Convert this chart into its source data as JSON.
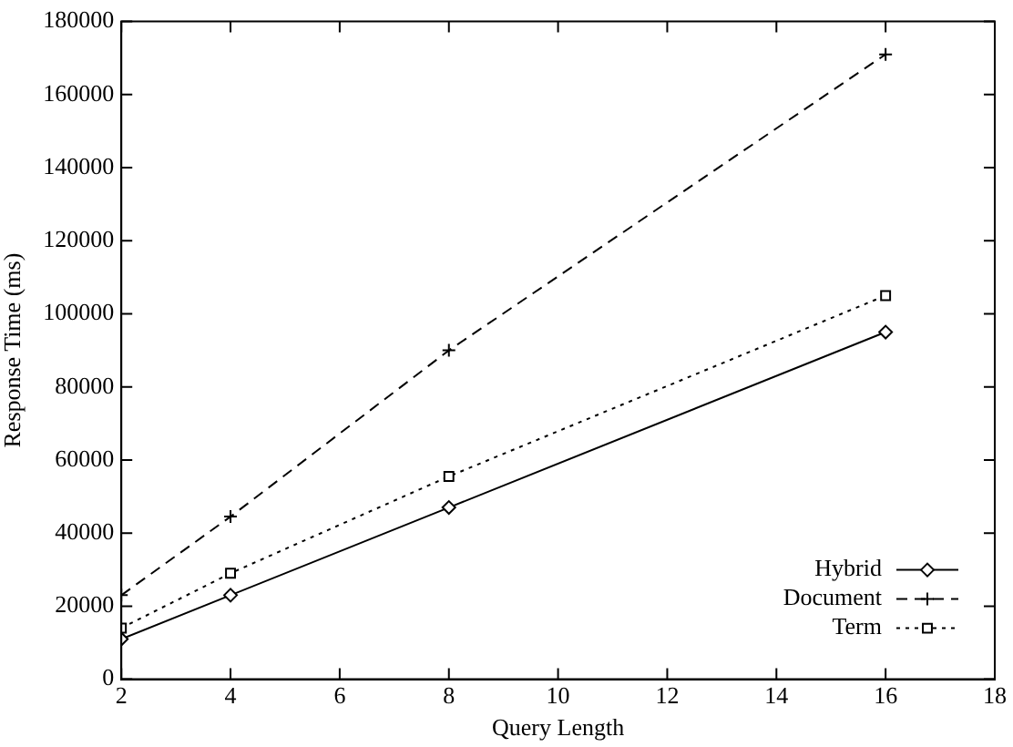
{
  "chart_data": {
    "type": "line",
    "xlabel": "Query Length",
    "ylabel": "Response Time (ms)",
    "x": [
      2,
      4,
      8,
      16
    ],
    "series": [
      {
        "name": "Hybrid",
        "color": "#000000",
        "values": [
          11000,
          23000,
          47000,
          95000
        ],
        "marker": "diamond",
        "line_style": "solid"
      },
      {
        "name": "Document",
        "color": "#000000",
        "values": [
          23000,
          44500,
          90000,
          171000
        ],
        "marker": "cross",
        "line_style": "dashed"
      },
      {
        "name": "Term",
        "color": "#000000",
        "values": [
          14000,
          29000,
          55500,
          105000
        ],
        "marker": "square",
        "line_style": "dotted"
      }
    ],
    "xlim": [
      2,
      18
    ],
    "xticks": [
      2,
      4,
      6,
      8,
      10,
      12,
      14,
      16,
      18
    ],
    "ylim": [
      0,
      180000
    ],
    "yticks": [
      0,
      20000,
      40000,
      60000,
      80000,
      100000,
      120000,
      140000,
      160000,
      180000
    ],
    "grid": false,
    "legend": "bottom right"
  }
}
